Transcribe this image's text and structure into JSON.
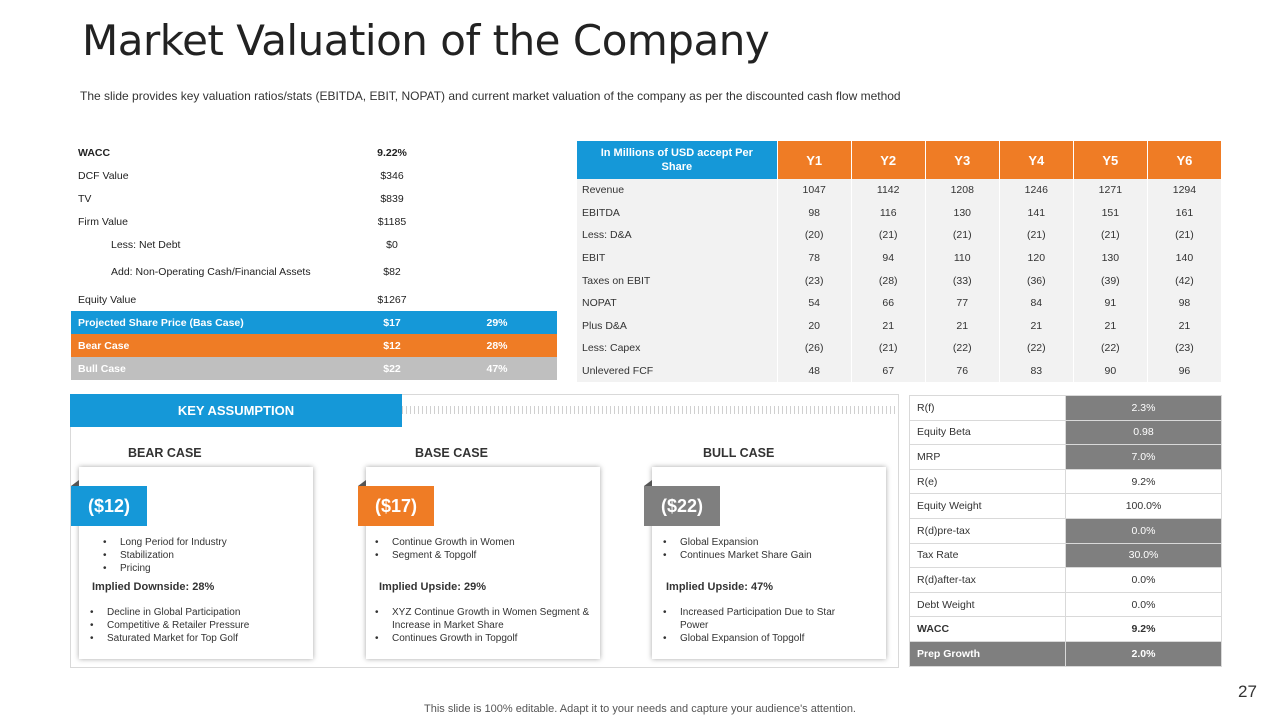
{
  "title": "Market Valuation of the Company",
  "subtitle": "The slide provides  key valuation ratios/stats (EBITDA,  EBIT, NOPAT) and current market valuation  of the company as per the discounted cash flow method",
  "valuation": {
    "rows": [
      {
        "label": "WACC",
        "value": "9.22%",
        "pct": ""
      },
      {
        "label": "DCF  Value",
        "value": "$346",
        "pct": ""
      },
      {
        "label": "TV",
        "value": "$839",
        "pct": ""
      },
      {
        "label": "Firm Value",
        "value": "$1185",
        "pct": ""
      },
      {
        "label": "Less: Net Debt",
        "value": "$0",
        "pct": ""
      },
      {
        "label": "Add: Non-Operating Cash/Financial Assets",
        "value": "$82",
        "pct": ""
      },
      {
        "label": "Equity Value",
        "value": "$1267",
        "pct": ""
      },
      {
        "label": "Projected Share Price (Bas Case)",
        "value": "$17",
        "pct": "29%"
      },
      {
        "label": "Bear Case",
        "value": "$12",
        "pct": "28%"
      },
      {
        "label": "Bull Case",
        "value": "$22",
        "pct": "47%"
      }
    ]
  },
  "projection": {
    "header": "In Millions of USD accept Per Share",
    "years": [
      "Y1",
      "Y2",
      "Y3",
      "Y4",
      "Y5",
      "Y6"
    ],
    "rows": [
      {
        "label": "Revenue",
        "values": [
          "1047",
          "1142",
          "1208",
          "1246",
          "1271",
          "1294"
        ]
      },
      {
        "label": "EBITDA",
        "values": [
          "98",
          "116",
          "130",
          "141",
          "151",
          "161"
        ]
      },
      {
        "label": "Less: D&A",
        "values": [
          "(20)",
          "(21)",
          "(21)",
          "(21)",
          "(21)",
          "(21)"
        ]
      },
      {
        "label": "EBIT",
        "values": [
          "78",
          "94",
          "110",
          "120",
          "130",
          "140"
        ]
      },
      {
        "label": "Taxes on EBIT",
        "values": [
          "(23)",
          "(28)",
          "(33)",
          "(36)",
          "(39)",
          "(42)"
        ]
      },
      {
        "label": "NOPAT",
        "values": [
          "54",
          "66",
          "77",
          "84",
          "91",
          "98"
        ]
      },
      {
        "label": "Plus D&A",
        "values": [
          "20",
          "21",
          "21",
          "21",
          "21",
          "21"
        ]
      },
      {
        "label": "Less: Capex",
        "values": [
          "(26)",
          "(21)",
          "(22)",
          "(22)",
          "(22)",
          "(23)"
        ]
      },
      {
        "label": "Unlevered FCF",
        "values": [
          "48",
          "67",
          "76",
          "83",
          "90",
          "96"
        ]
      }
    ]
  },
  "assumption": {
    "header": "KEY  ASSUMPTION",
    "cases": [
      {
        "label": "BEAR CASE",
        "price": "($12)",
        "color": "#1598d8",
        "top_bullets": [
          "Long Period for Industry",
          "Stabilization",
          "Pricing"
        ],
        "implied": "Implied Downside: 28%",
        "bottom_bullets": [
          "Decline in Global Participation",
          "Competitive & Retailer Pressure",
          "Saturated Market for Top Golf"
        ]
      },
      {
        "label": "BASE CASE",
        "price": "($17)",
        "color": "#ef7c25",
        "top_bullets": [
          "Continue Growth in Women",
          "Segment & Topgolf"
        ],
        "implied": "Implied Upside: 29%",
        "bottom_bullets": [
          "XYZ Continue Growth in Women Segment & Increase in Market Share",
          "Continues Growth in Topgolf"
        ]
      },
      {
        "label": "BULL CASE",
        "price": "($22)",
        "color": "#7f7f7f",
        "top_bullets": [
          "Global Expansion",
          "Continues Market Share Gain"
        ],
        "implied": "Implied Upside: 47%",
        "bottom_bullets": [
          "Increased Participation Due to Star Power",
          "Global Expansion of Topgolf"
        ]
      }
    ]
  },
  "ratios": [
    {
      "label": "R(f)",
      "value": "2.3%"
    },
    {
      "label": "Equity Beta",
      "value": "0.98"
    },
    {
      "label": "MRP",
      "value": "7.0%"
    },
    {
      "label": "R(e)",
      "value": "9.2%"
    },
    {
      "label": "Equity Weight",
      "value": "100.0%"
    },
    {
      "label": "R(d)pre-tax",
      "value": "0.0%"
    },
    {
      "label": "Tax Rate",
      "value": "30.0%"
    },
    {
      "label": "R(d)after-tax",
      "value": "0.0%"
    },
    {
      "label": "Debt Weight",
      "value": "0.0%"
    },
    {
      "label": "WACC",
      "value": "9.2%"
    },
    {
      "label": "Prep Growth",
      "value": "2.0%"
    }
  ],
  "page_number": "27",
  "footer": "This slide is 100% editable. Adapt it to your needs and capture your audience's attention."
}
